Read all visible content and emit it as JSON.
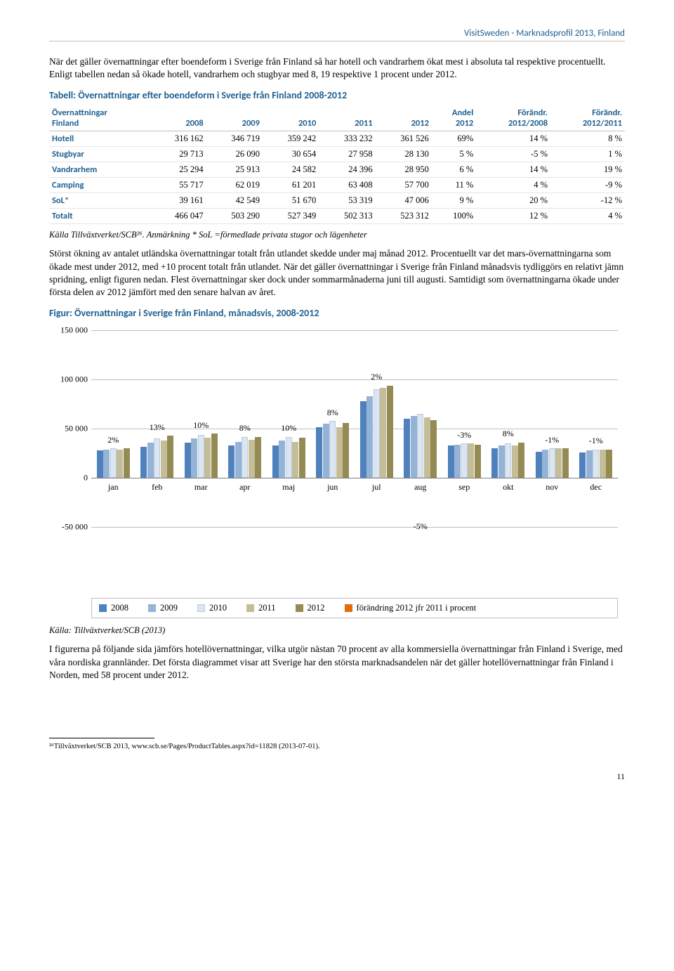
{
  "header": "VisitSweden - Marknadsprofil 2013, Finland",
  "para1": "När det gäller övernattningar efter boendeform i Sverige från Finland så har hotell och vandrarhem ökat mest i absoluta tal respektive procentuellt. Enligt tabellen nedan så ökade hotell, vandrarhem och stugbyar med 8, 19 respektive 1 procent under 2012.",
  "tableTitle": "Tabell: Övernattningar efter boendeform i Sverige från Finland 2008-2012",
  "table": {
    "columns": [
      "Övernattningar Finland",
      "2008",
      "2009",
      "2010",
      "2011",
      "2012",
      "Andel 2012",
      "Förändr. 2012/2008",
      "Förändr. 2012/2011"
    ],
    "rows": [
      [
        "Hotell",
        "316 162",
        "346 719",
        "359 242",
        "333 232",
        "361 526",
        "69%",
        "14 %",
        "8 %"
      ],
      [
        "Stugbyar",
        "29 713",
        "26 090",
        "30 654",
        "27 958",
        "28 130",
        "5 %",
        "-5 %",
        "1 %"
      ],
      [
        "Vandrarhem",
        "25 294",
        "25 913",
        "24 582",
        "24 396",
        "28 950",
        "6 %",
        "14 %",
        "19 %"
      ],
      [
        "Camping",
        "55 717",
        "62 019",
        "61 201",
        "63 408",
        "57 700",
        "11 %",
        "4 %",
        "-9 %"
      ],
      [
        "SoL*",
        "39 161",
        "42 549",
        "51 670",
        "53 319",
        "47 006",
        "9 %",
        "20 %",
        "-12 %"
      ],
      [
        "Totalt",
        "466 047",
        "503 290",
        "527 349",
        "502 313",
        "523 312",
        "100%",
        "12 %",
        "4 %"
      ]
    ]
  },
  "tableNote": "Källa Tillväxtverket/SCB²⁶. Anmärkning * SoL =förmedlade privata stugor och lägenheter",
  "para2": "Störst ökning av antalet utländska övernattningar totalt från utlandet skedde under maj månad 2012. Procentuellt var det mars-övernattningarna som ökade mest under 2012, med +10 procent totalt från utlandet. När det gäller övernattningar i Sverige från Finland månadsvis tydliggörs en relativt jämn spridning, enligt figuren nedan. Flest övernattningar sker dock under sommarmånaderna juni till augusti. Samtidigt som övernattningarna ökade under första delen av 2012 jämfört med den senare halvan av året.",
  "figTitle": "Figur: Övernattningar i Sverige från Finland, månadsvis, 2008-2012",
  "chart": {
    "ymin": -50000,
    "ymax": 150000,
    "yticks": [
      -50000,
      0,
      50000,
      100000,
      150000
    ],
    "ylabels": [
      "-50 000",
      "0",
      "50 000",
      "100 000",
      "150 000"
    ],
    "colors": {
      "y2008": "#4f81bd",
      "y2009": "#95b3d7",
      "y2010": "#dce6f1",
      "y2011": "#c4bd97",
      "y2012": "#948a54",
      "change": "#e46c0a"
    },
    "months": [
      "jan",
      "feb",
      "mar",
      "apr",
      "maj",
      "jun",
      "jul",
      "aug",
      "sep",
      "okt",
      "nov",
      "dec"
    ],
    "series": {
      "y2008": [
        28000,
        32000,
        36000,
        33000,
        33000,
        52000,
        78000,
        60000,
        33000,
        30000,
        27000,
        26000
      ],
      "y2009": [
        29000,
        36000,
        40000,
        37000,
        38000,
        55000,
        83000,
        63000,
        34000,
        33000,
        29000,
        28000
      ],
      "y2010": [
        30000,
        40000,
        44000,
        42000,
        42000,
        58000,
        90000,
        65000,
        35000,
        35000,
        30000,
        29000
      ],
      "y2011": [
        29000,
        38000,
        41000,
        39000,
        37000,
        52000,
        92000,
        62000,
        35000,
        33000,
        30000,
        29000
      ],
      "y2012": [
        30000,
        43000,
        45000,
        42000,
        41000,
        56000,
        94000,
        59000,
        34000,
        36000,
        30000,
        29000
      ]
    },
    "pct": [
      "2%",
      "13%",
      "10%",
      "8%",
      "10%",
      "8%",
      "2%",
      "-5%",
      "-3%",
      "8%",
      "-1%",
      "-1%"
    ],
    "pctPos": [
      "above",
      "above",
      "above",
      "above",
      "above",
      "above",
      "above",
      "below",
      "above",
      "above",
      "above",
      "above"
    ],
    "legend": [
      "2008",
      "2009",
      "2010",
      "2011",
      "2012",
      "förändring 2012 jfr 2011 i procent"
    ]
  },
  "source": "Källa: Tillväxtverket/SCB (2013)",
  "para3": "I figurerna på följande sida jämförs hotellövernattningar, vilka utgör nästan 70 procent av alla kommersiella övernattningar från Finland i Sverige, med våra nordiska grannländer. Det första diagrammet visar att Sverige har den största marknadsandelen när det gäller hotellövernattningar från Finland i Norden, med 58 procent under 2012.",
  "footnote": "²⁶Tillväxtverket/SCB 2013, www.scb.se/Pages/ProductTables.aspx?id=11828 (2013-07-01).",
  "pageNum": "11"
}
